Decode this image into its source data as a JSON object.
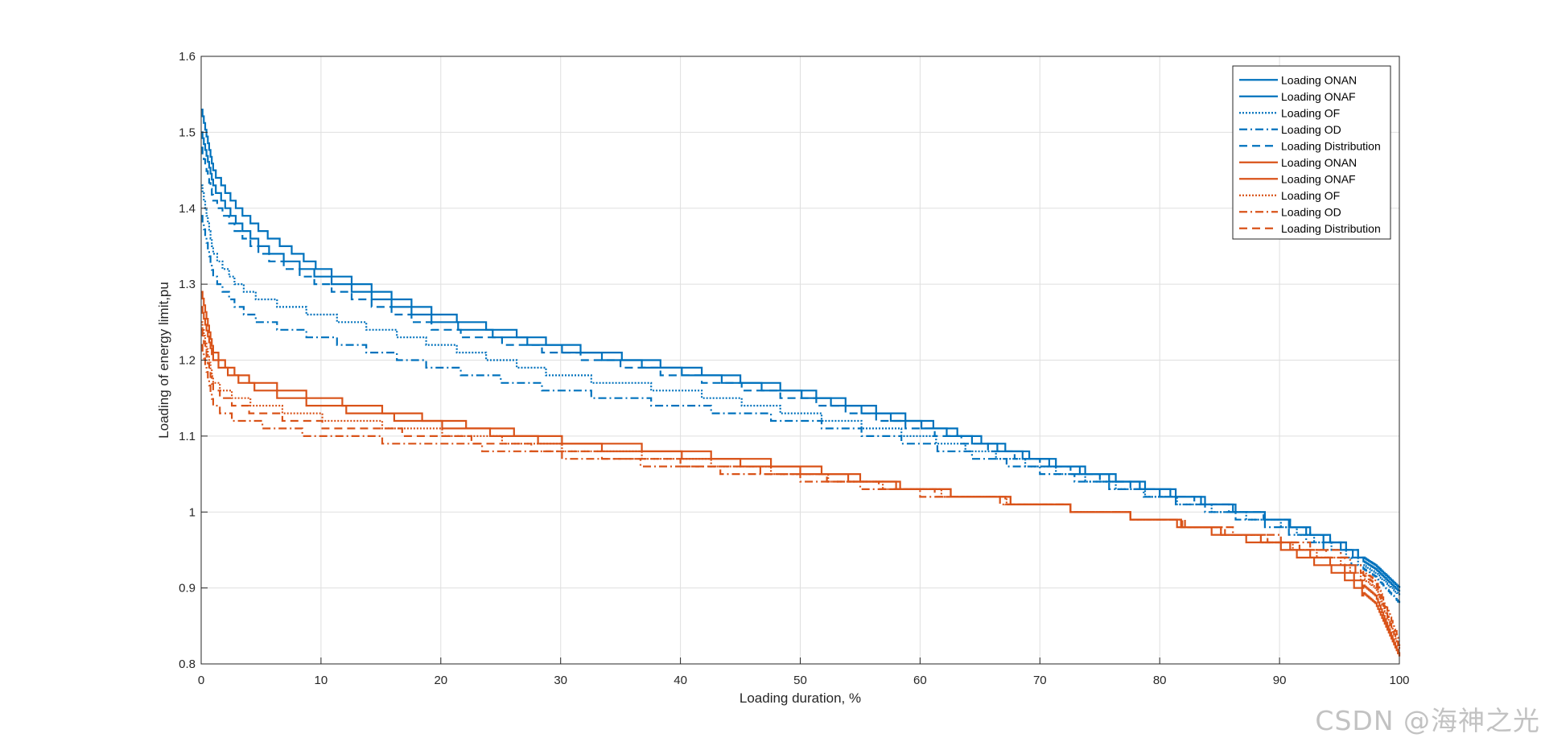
{
  "chart_data": {
    "type": "line",
    "title": "",
    "xlabel": "Loading duration, %",
    "ylabel": "Loading of energy limit,pu",
    "xlim": [
      0,
      100
    ],
    "ylim": [
      0.8,
      1.6
    ],
    "xticks": [
      0,
      10,
      20,
      30,
      40,
      50,
      60,
      70,
      80,
      90,
      100
    ],
    "xtick_labels": [
      "0",
      "10",
      "20",
      "30",
      "40",
      "50",
      "60",
      "70",
      "80",
      "90",
      "100"
    ],
    "yticks": [
      0.8,
      0.9,
      1.0,
      1.1,
      1.2,
      1.3,
      1.4,
      1.5,
      1.6
    ],
    "ytick_labels": [
      "0.8",
      "0.9",
      "1",
      "1.1",
      "1.2",
      "1.3",
      "1.4",
      "1.5",
      "1.6"
    ],
    "grid": true,
    "legend_position": "top-right",
    "step_style": true,
    "x": [
      0,
      1,
      3,
      5,
      10,
      20,
      30,
      40,
      50,
      60,
      70,
      80,
      90,
      95,
      98,
      100
    ],
    "series": [
      {
        "name": "Loading ONAN",
        "color": "#0072BD",
        "dash": "solid",
        "values": [
          1.53,
          1.45,
          1.4,
          1.37,
          1.32,
          1.26,
          1.22,
          1.19,
          1.16,
          1.12,
          1.07,
          1.03,
          0.99,
          0.96,
          0.93,
          0.9
        ]
      },
      {
        "name": "Loading ONAF",
        "color": "#0072BD",
        "dash": "solid",
        "values": [
          1.5,
          1.43,
          1.38,
          1.35,
          1.31,
          1.25,
          1.215,
          1.185,
          1.155,
          1.115,
          1.068,
          1.028,
          0.99,
          0.955,
          0.925,
          0.895
        ]
      },
      {
        "name": "Loading OF",
        "color": "#0072BD",
        "dash": "dot",
        "values": [
          1.43,
          1.34,
          1.3,
          1.28,
          1.26,
          1.22,
          1.18,
          1.16,
          1.13,
          1.1,
          1.06,
          1.02,
          0.985,
          0.95,
          0.92,
          0.89
        ]
      },
      {
        "name": "Loading OD",
        "color": "#0072BD",
        "dash": "dashdot",
        "values": [
          1.39,
          1.31,
          1.27,
          1.25,
          1.23,
          1.19,
          1.16,
          1.14,
          1.12,
          1.09,
          1.055,
          1.02,
          0.98,
          0.945,
          0.915,
          0.88
        ]
      },
      {
        "name": "Loading Distribution",
        "color": "#0072BD",
        "dash": "dash",
        "values": [
          1.48,
          1.41,
          1.37,
          1.34,
          1.3,
          1.24,
          1.21,
          1.18,
          1.15,
          1.11,
          1.065,
          1.025,
          0.99,
          0.96,
          0.93,
          0.9
        ]
      },
      {
        "name": "Loading ONAN",
        "color": "#D95319",
        "dash": "solid",
        "values": [
          1.29,
          1.21,
          1.18,
          1.17,
          1.15,
          1.12,
          1.095,
          1.08,
          1.06,
          1.03,
          1.01,
          0.99,
          0.96,
          0.93,
          0.89,
          0.81
        ]
      },
      {
        "name": "Loading ONAF",
        "color": "#D95319",
        "dash": "solid",
        "values": [
          1.27,
          1.2,
          1.175,
          1.16,
          1.14,
          1.115,
          1.09,
          1.075,
          1.055,
          1.03,
          1.01,
          0.99,
          0.955,
          0.92,
          0.88,
          0.81
        ]
      },
      {
        "name": "Loading OF",
        "color": "#D95319",
        "dash": "dot",
        "values": [
          1.25,
          1.17,
          1.15,
          1.14,
          1.125,
          1.105,
          1.085,
          1.07,
          1.05,
          1.028,
          1.01,
          0.99,
          0.96,
          0.935,
          0.9,
          0.82
        ]
      },
      {
        "name": "Loading OD",
        "color": "#D95319",
        "dash": "dashdot",
        "values": [
          1.22,
          1.14,
          1.12,
          1.115,
          1.1,
          1.09,
          1.075,
          1.06,
          1.045,
          1.025,
          1.01,
          0.99,
          0.965,
          0.945,
          0.91,
          0.83
        ]
      },
      {
        "name": "Loading Distribution",
        "color": "#D95319",
        "dash": "dash",
        "values": [
          1.24,
          1.16,
          1.14,
          1.13,
          1.115,
          1.1,
          1.08,
          1.065,
          1.05,
          1.027,
          1.01,
          0.99,
          0.962,
          0.94,
          0.905,
          0.82
        ]
      }
    ]
  },
  "watermark": "CSDN @海神之光"
}
